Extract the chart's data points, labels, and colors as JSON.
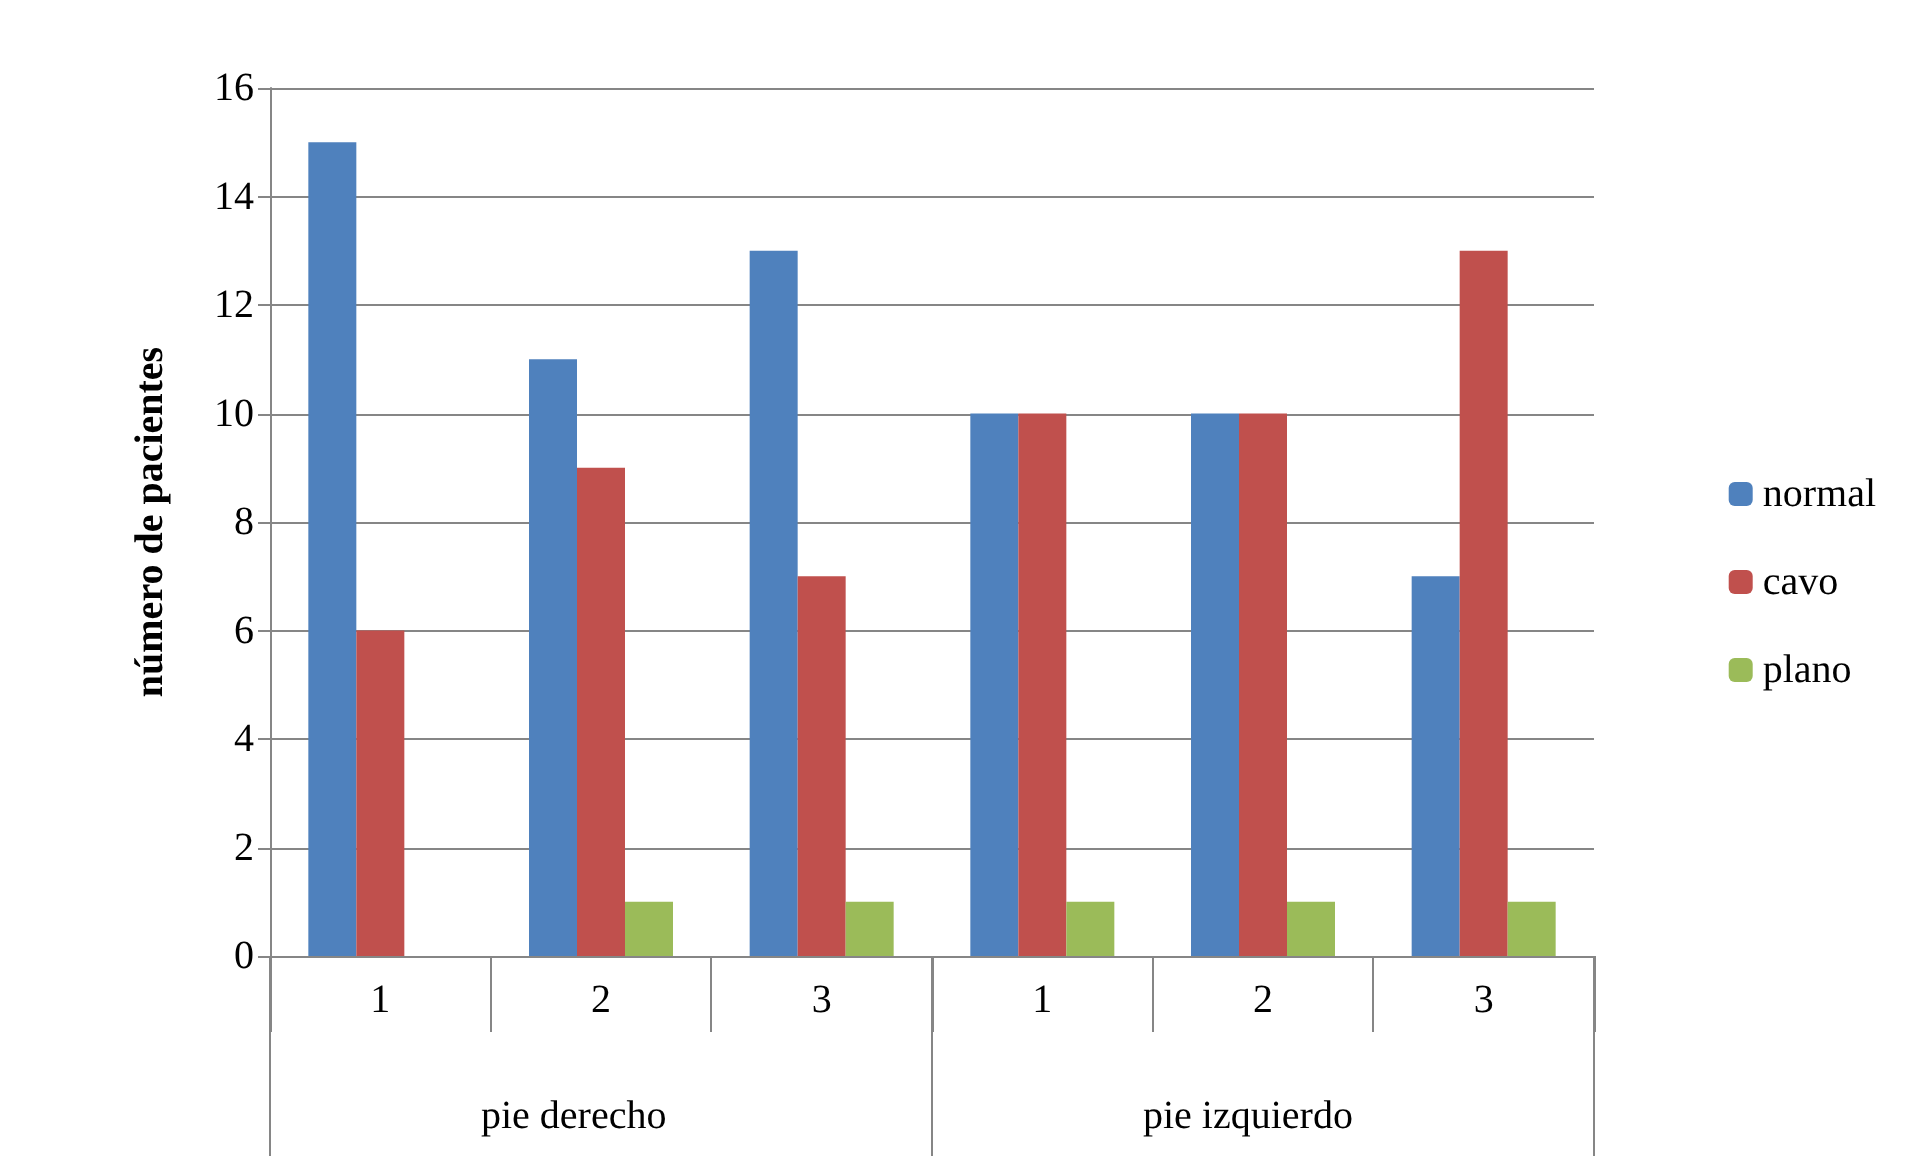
{
  "chart_data": {
    "type": "bar",
    "ylabel": "número de pacientes",
    "categories": [
      "1",
      "2",
      "3",
      "1",
      "2",
      "3"
    ],
    "series": [
      {
        "name": "normal",
        "color": "#4f81bd",
        "values": [
          15,
          11,
          13,
          10,
          10,
          7
        ]
      },
      {
        "name": "cavo",
        "color": "#c0504d",
        "values": [
          6,
          9,
          7,
          10,
          10,
          13
        ]
      },
      {
        "name": "plano",
        "color": "#9bbb59",
        "values": [
          0,
          1,
          1,
          1,
          1,
          1
        ]
      }
    ],
    "annotations": [
      "pie derecho",
      "pie izquierdo"
    ],
    "ylim": [
      0,
      16
    ],
    "yticks": [
      0,
      2,
      4,
      6,
      8,
      10,
      12,
      14,
      16
    ],
    "grid": "y",
    "legend": "right"
  }
}
